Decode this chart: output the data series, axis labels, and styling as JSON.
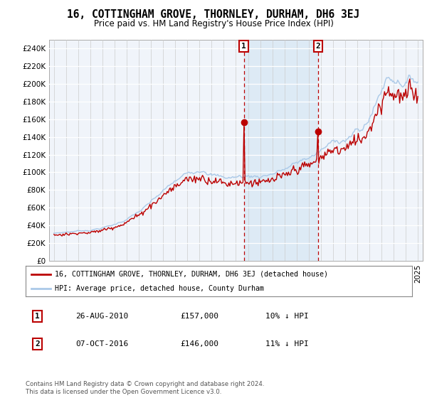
{
  "title": "16, COTTINGHAM GROVE, THORNLEY, DURHAM, DH6 3EJ",
  "subtitle": "Price paid vs. HM Land Registry's House Price Index (HPI)",
  "legend_line1": "16, COTTINGHAM GROVE, THORNLEY, DURHAM, DH6 3EJ (detached house)",
  "legend_line2": "HPI: Average price, detached house, County Durham",
  "annotation1_date": "26-AUG-2010",
  "annotation1_price": "£157,000",
  "annotation1_hpi": "10% ↓ HPI",
  "annotation2_date": "07-OCT-2016",
  "annotation2_price": "£146,000",
  "annotation2_hpi": "11% ↓ HPI",
  "footer": "Contains HM Land Registry data © Crown copyright and database right 2024.\nThis data is licensed under the Open Government Licence v3.0.",
  "sale1_x": 2010.65,
  "sale1_y": 157000,
  "sale2_x": 2016.77,
  "sale2_y": 146000,
  "hpi_color": "#aac9e8",
  "sale_color": "#bb0000",
  "shade_color": "#ddeaf5",
  "background_color": "#f0f4fa",
  "ylim": [
    0,
    250000
  ],
  "yticks": [
    0,
    20000,
    40000,
    60000,
    80000,
    100000,
    120000,
    140000,
    160000,
    180000,
    200000,
    220000,
    240000
  ],
  "xlim_start": 1994.6,
  "xlim_end": 2025.4
}
